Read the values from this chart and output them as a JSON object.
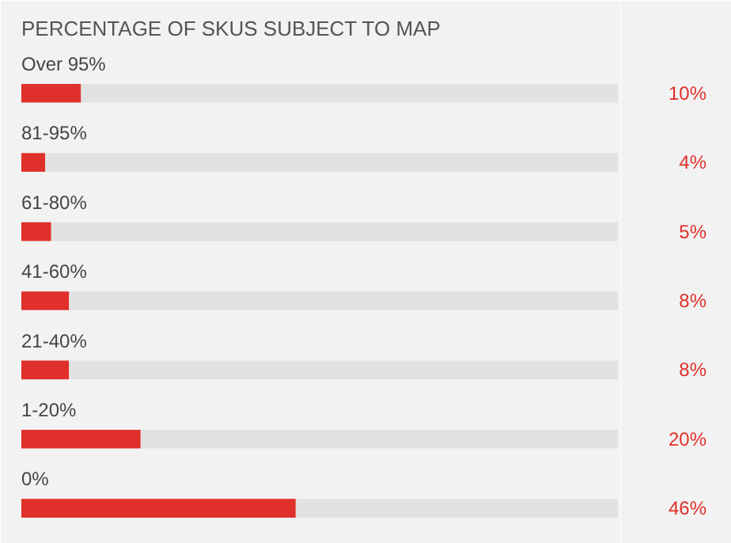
{
  "chart_data": {
    "type": "bar",
    "orientation": "horizontal",
    "stacked": true,
    "title": "PERCENTAGE OF SKUS SUBJECT TO MAP",
    "categories": [
      "Over 95%",
      "81-95%",
      "61-80%",
      "41-60%",
      "21-40%",
      "1-20%",
      "0%"
    ],
    "series": [
      {
        "color": "#e0302b",
        "values": [
          10,
          4,
          5,
          8,
          8,
          20,
          46
        ],
        "value_labels": [
          "10%",
          "4%",
          "5%",
          "8%",
          "8%",
          "20%",
          "46%"
        ]
      },
      {
        "color": "#e2e2e2",
        "values": [
          90,
          96,
          95,
          92,
          92,
          80,
          54
        ]
      }
    ],
    "xlim": [
      0,
      100
    ],
    "tick_labels": false,
    "grid": false
  }
}
